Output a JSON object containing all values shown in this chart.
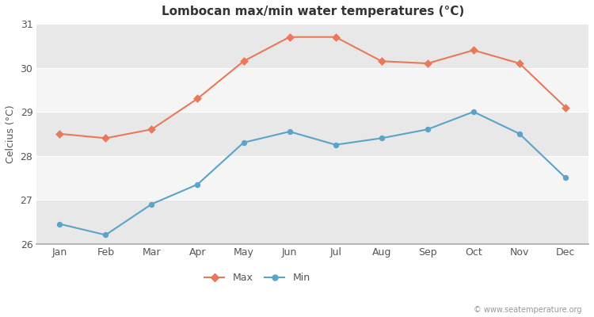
{
  "title": "Lombocan max/min water temperatures (°C)",
  "ylabel": "Celcius (°C)",
  "months": [
    "Jan",
    "Feb",
    "Mar",
    "Apr",
    "May",
    "Jun",
    "Jul",
    "Aug",
    "Sep",
    "Oct",
    "Nov",
    "Dec"
  ],
  "max_temps": [
    28.5,
    28.4,
    28.6,
    29.3,
    30.15,
    30.7,
    30.7,
    30.15,
    30.1,
    30.4,
    30.1,
    29.1
  ],
  "min_temps": [
    26.45,
    26.2,
    26.9,
    27.35,
    28.3,
    28.55,
    28.25,
    28.4,
    28.6,
    29.0,
    28.5,
    27.5
  ],
  "max_color": "#e8795a",
  "min_color": "#5ba3c9",
  "bg_color": "#ffffff",
  "plot_bg_light": "#f5f5f5",
  "plot_bg_dark": "#e8e8e8",
  "ylim": [
    26,
    31
  ],
  "yticks": [
    26,
    27,
    28,
    29,
    30,
    31
  ],
  "watermark": "© www.seatemperature.org",
  "title_fontsize": 11,
  "label_fontsize": 9,
  "tick_fontsize": 9
}
